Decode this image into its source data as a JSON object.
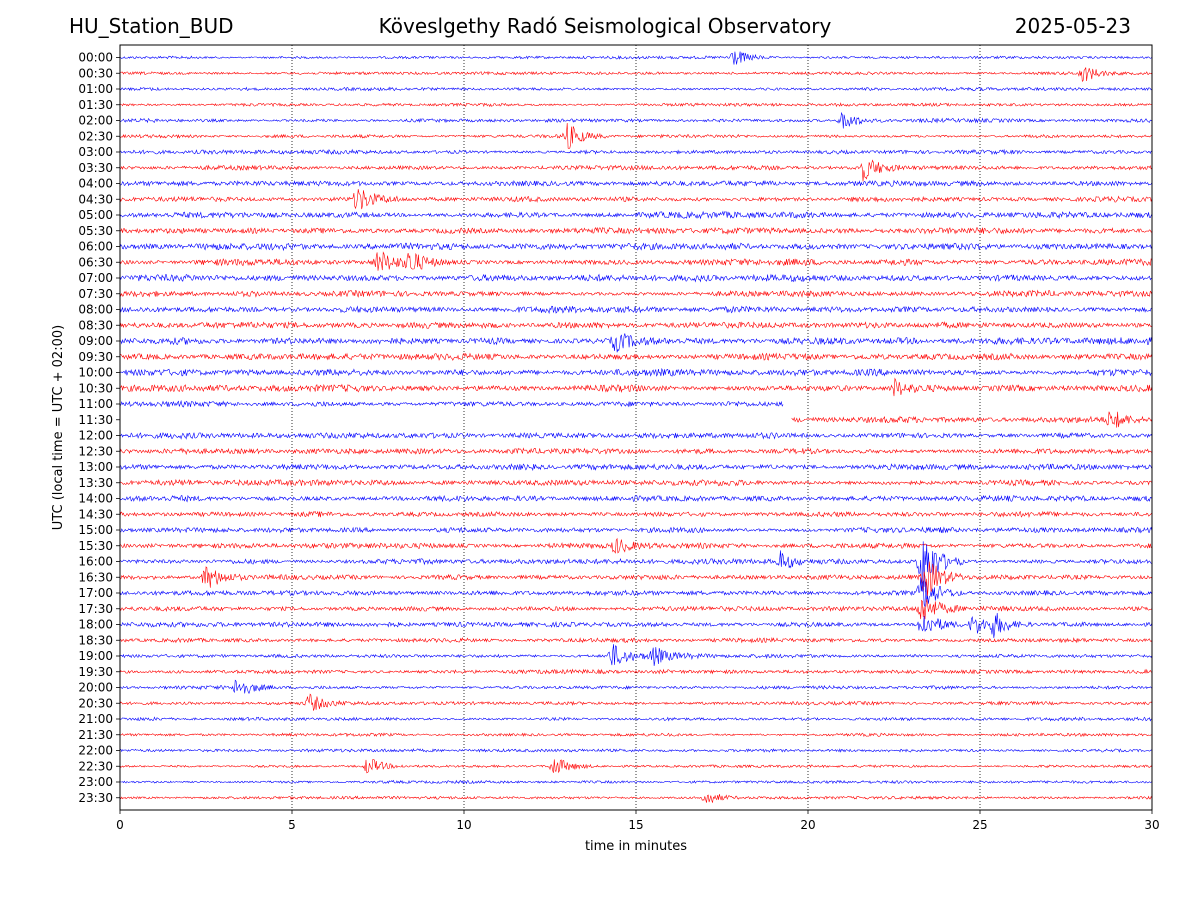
{
  "header": {
    "station": "HU_Station_BUD",
    "observatory": "Köveslgethy Radó Seismological Observatory",
    "date": "2025-05-23"
  },
  "chart_data": {
    "type": "line",
    "title": "Köveslgethy Radó Seismological Observatory",
    "xlabel": "time in minutes",
    "ylabel": "UTC (local time = UTC + 02:00)",
    "xlim": [
      0,
      30
    ],
    "xticks": [
      0,
      5,
      10,
      15,
      20,
      25,
      30
    ],
    "grid": "vertical dotted at x ticks",
    "colors": [
      "#0000ff",
      "#ff0000"
    ],
    "rows": [
      "00:00",
      "00:30",
      "01:00",
      "01:30",
      "02:00",
      "02:30",
      "03:00",
      "03:30",
      "04:00",
      "04:30",
      "05:00",
      "05:30",
      "06:00",
      "06:30",
      "07:00",
      "07:30",
      "08:00",
      "08:30",
      "09:00",
      "09:30",
      "10:00",
      "10:30",
      "11:00",
      "11:30",
      "12:00",
      "12:30",
      "13:00",
      "13:30",
      "14:00",
      "14:30",
      "15:00",
      "15:30",
      "16:00",
      "16:30",
      "17:00",
      "17:30",
      "18:00",
      "18:30",
      "19:00",
      "19:30",
      "20:00",
      "20:30",
      "21:00",
      "21:30",
      "22:00",
      "22:30",
      "23:00",
      "23:30"
    ],
    "noise_level": [
      0.4,
      0.45,
      0.45,
      0.45,
      0.55,
      0.5,
      0.6,
      0.65,
      0.75,
      0.8,
      0.9,
      0.9,
      1.0,
      0.95,
      1.0,
      0.9,
      1.0,
      0.9,
      1.0,
      0.95,
      1.0,
      0.95,
      0.85,
      0.9,
      0.85,
      0.85,
      0.85,
      0.85,
      0.85,
      0.85,
      0.8,
      0.75,
      0.75,
      0.75,
      0.7,
      0.7,
      0.7,
      0.65,
      0.6,
      0.6,
      0.55,
      0.5,
      0.5,
      0.45,
      0.45,
      0.4,
      0.4,
      0.4
    ],
    "gaps": [
      {
        "row": "11:00",
        "from_min": 19.3,
        "to_min": 30
      },
      {
        "row": "11:30",
        "from_min": 0,
        "to_min": 19.5
      }
    ],
    "events": [
      {
        "row": "00:00",
        "minute": 17.8,
        "amplitude": 1.5
      },
      {
        "row": "00:30",
        "minute": 28.0,
        "amplitude": 1.4
      },
      {
        "row": "02:00",
        "minute": 21.0,
        "amplitude": 1.7
      },
      {
        "row": "02:30",
        "minute": 13.0,
        "amplitude": 2.2
      },
      {
        "row": "03:30",
        "minute": 21.6,
        "amplitude": 2.0
      },
      {
        "row": "04:30",
        "minute": 6.9,
        "amplitude": 2.0
      },
      {
        "row": "06:30",
        "minute": 7.5,
        "amplitude": 1.8
      },
      {
        "row": "06:30",
        "minute": 8.4,
        "amplitude": 1.8
      },
      {
        "row": "09:00",
        "minute": 14.4,
        "amplitude": 1.6
      },
      {
        "row": "10:30",
        "minute": 22.5,
        "amplitude": 1.5
      },
      {
        "row": "11:30",
        "minute": 28.8,
        "amplitude": 1.5
      },
      {
        "row": "15:30",
        "minute": 14.4,
        "amplitude": 1.3
      },
      {
        "row": "16:00",
        "minute": 19.2,
        "amplitude": 1.6
      },
      {
        "row": "16:00",
        "minute": 23.3,
        "amplitude": 6.0
      },
      {
        "row": "16:30",
        "minute": 2.5,
        "amplitude": 2.0
      },
      {
        "row": "16:30",
        "minute": 23.4,
        "amplitude": 3.6
      },
      {
        "row": "17:00",
        "minute": 23.3,
        "amplitude": 3.0
      },
      {
        "row": "17:30",
        "minute": 23.3,
        "amplitude": 2.5
      },
      {
        "row": "18:00",
        "minute": 23.3,
        "amplitude": 2.2
      },
      {
        "row": "18:00",
        "minute": 24.8,
        "amplitude": 1.8
      },
      {
        "row": "18:00",
        "minute": 25.4,
        "amplitude": 1.8
      },
      {
        "row": "19:00",
        "minute": 14.3,
        "amplitude": 2.0
      },
      {
        "row": "19:00",
        "minute": 15.5,
        "amplitude": 1.5
      },
      {
        "row": "20:00",
        "minute": 3.4,
        "amplitude": 1.8
      },
      {
        "row": "20:30",
        "minute": 5.5,
        "amplitude": 1.5
      },
      {
        "row": "22:30",
        "minute": 7.2,
        "amplitude": 1.6
      },
      {
        "row": "22:30",
        "minute": 12.6,
        "amplitude": 1.6
      },
      {
        "row": "23:30",
        "minute": 17.0,
        "amplitude": 1.3
      }
    ]
  }
}
